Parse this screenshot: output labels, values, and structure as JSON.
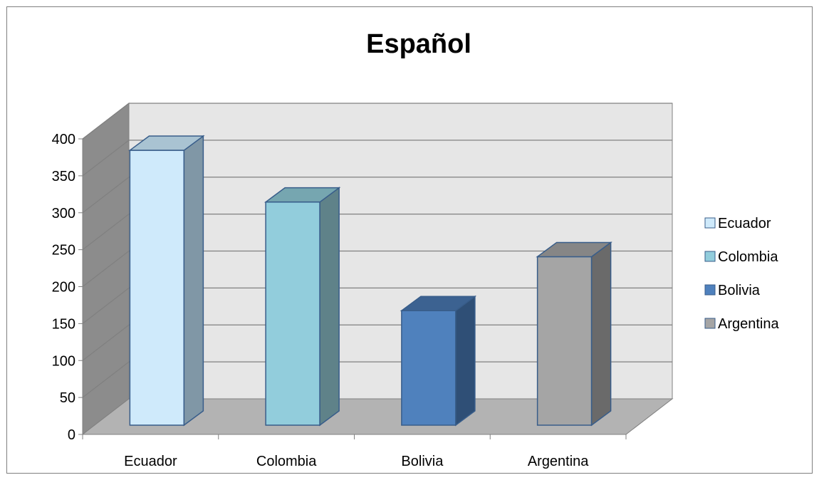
{
  "chart_data": {
    "type": "bar",
    "title": "Español",
    "xlabel": "",
    "ylabel": "",
    "categories": [
      "Ecuador",
      "Colombia",
      "Bolivia",
      "Argentina"
    ],
    "values": [
      372,
      302,
      155,
      228
    ],
    "yticks": [
      "0",
      "50",
      "100",
      "150",
      "200",
      "250",
      "300",
      "350",
      "400"
    ],
    "ylim": [
      0,
      400
    ],
    "grid": true,
    "legend": {
      "position": "right",
      "entries": [
        "Ecuador",
        "Colombia",
        "Bolivia",
        "Argentina"
      ]
    },
    "colors": {
      "front": [
        "#cfeafb",
        "#92cddc",
        "#4f81bd",
        "#a5a5a5"
      ],
      "side": [
        "#8097a6",
        "#5f8289",
        "#2f4f76",
        "#6a6a6a"
      ],
      "top": [
        "#a9c3d2",
        "#76a6b0",
        "#3c6291",
        "#868686"
      ],
      "border": "#385d8a",
      "back_wall": "#e6e6e6",
      "side_wall": "#8c8c8c",
      "floor": "#b3b3b3",
      "grid": "#808080"
    }
  }
}
